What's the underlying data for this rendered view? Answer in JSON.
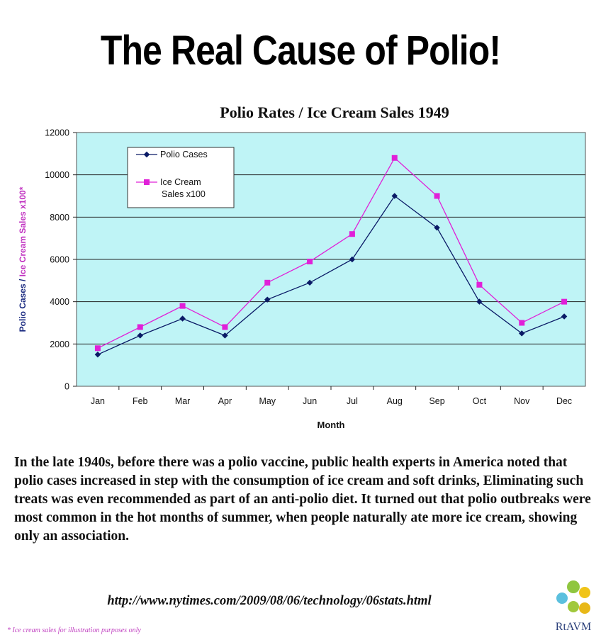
{
  "headline": "The Real Cause of Polio!",
  "caption": "In the late 1940s, before there was a polio vaccine, public health experts in America noted that polio cases increased in step with the consumption of ice cream and soft drinks, Eliminating such treats was even recommended as part of an anti-polio diet. It turned out that polio outbreaks were most common in the hot months of summer, when people naturally ate more ice cream, showing only an association.",
  "source_url": "http://www.nytimes.com/2009/08/06/technology/06stats.html",
  "footnote": "* Ice cream sales for illustration purposes only",
  "logo": {
    "text": "RtAVM",
    "dot_colors": [
      "#8fc63f",
      "#f0c419",
      "#5bc0de",
      "#a0c83c",
      "#e8b818"
    ]
  },
  "chart_data": {
    "type": "line",
    "title": "Polio Rates / Ice Cream Sales 1949",
    "xlabel": "Month",
    "ylabel_parts": [
      "Polio Cases / ",
      "Ice Cream Sales x100*"
    ],
    "categories": [
      "Jan",
      "Feb",
      "Mar",
      "Apr",
      "May",
      "Jun",
      "Jul",
      "Aug",
      "Sep",
      "Oct",
      "Nov",
      "Dec"
    ],
    "ylim": [
      0,
      12000
    ],
    "yticks": [
      "0",
      "2000",
      "4000",
      "6000",
      "8000",
      "10000",
      "12000"
    ],
    "grid": true,
    "legend_position": "top-left",
    "plot_background": "#bff4f6",
    "series": [
      {
        "name": "Polio Cases",
        "color": "#0a1a66",
        "marker": "diamond",
        "values": [
          1500,
          2400,
          3200,
          2400,
          4100,
          4900,
          6000,
          9000,
          7500,
          4000,
          2500,
          3300
        ]
      },
      {
        "name": "Ice Cream Sales x100",
        "legend_lines": [
          "Ice Cream",
          "Sales x100"
        ],
        "color": "#e020d8",
        "marker": "square",
        "values": [
          1800,
          2800,
          3800,
          2800,
          4900,
          5900,
          7200,
          10800,
          9000,
          4800,
          3000,
          4000
        ]
      }
    ]
  }
}
